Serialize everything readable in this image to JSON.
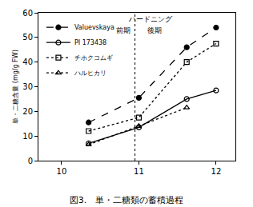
{
  "chart_data": {
    "type": "line",
    "title": "図3.　単・二糖類の蓄積過程",
    "y_label": "単・二糖含量 (mg/g FW)",
    "xlim": [
      9.7,
      12.25
    ],
    "xticks": [
      10,
      11,
      12
    ],
    "ylim": [
      0,
      60
    ],
    "yticks": [
      0,
      10,
      20,
      30,
      40,
      50,
      60
    ],
    "grid": false,
    "legend": "top-left",
    "series": [
      {
        "name": "Valuevskaya",
        "color": "#000000",
        "marker": "circle",
        "line_style": "dash",
        "x": [
          10.35,
          11.0,
          11.62,
          12.0
        ],
        "values": [
          15.5,
          25.5,
          46,
          54
        ]
      },
      {
        "name": "PI 173438",
        "color": "#000000",
        "marker": "circle-open",
        "line_style": "solid",
        "x": [
          10.35,
          11.0,
          11.62,
          12.0
        ],
        "values": [
          7,
          13.5,
          25,
          28.5
        ]
      },
      {
        "name": "チホクコムギ",
        "color": "#000000",
        "marker": "square-open",
        "line_style": "dot",
        "x": [
          10.35,
          11.0,
          11.62,
          12.0
        ],
        "values": [
          12,
          17.5,
          40,
          47.5
        ]
      },
      {
        "name": "ハルヒカリ",
        "color": "#000000",
        "marker": "triangle-up-open",
        "line_style": "dot",
        "x": [
          10.35,
          11.0,
          11.62
        ],
        "values": [
          6.5,
          14,
          21.5
        ]
      }
    ],
    "reference_lines": [
      {
        "x": 10.95,
        "line_style": "dot"
      }
    ],
    "annotations": [
      {
        "text": "ハードニング",
        "x": 11.15,
        "y": 57.5
      },
      {
        "text": "前期",
        "x": 10.8,
        "y": 53
      },
      {
        "text": "後期",
        "x": 11.2,
        "y": 53
      }
    ]
  }
}
